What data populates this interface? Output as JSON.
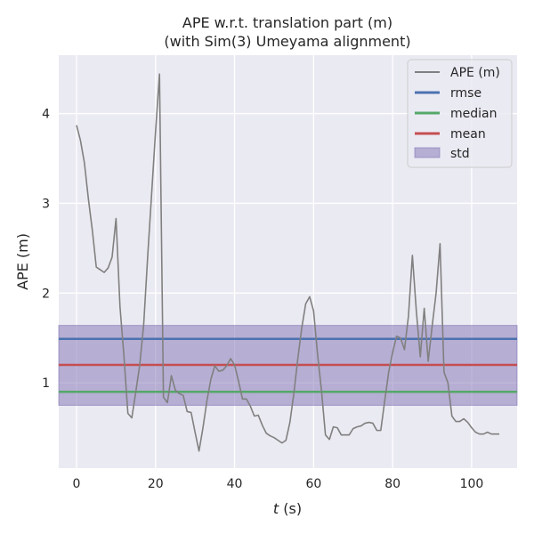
{
  "chart_data": {
    "type": "line",
    "title_line1": "APE w.r.t. translation part (m)",
    "title_line2": "(with Sim(3) Umeyama alignment)",
    "xlabel_var": "t",
    "xlabel_unit": " (s)",
    "ylabel": "APE (m)",
    "xlim": [
      -4.5,
      111.5
    ],
    "ylim": [
      0.05,
      4.65
    ],
    "xticks": [
      0,
      20,
      40,
      60,
      80,
      100
    ],
    "yticks": [
      1,
      2,
      3,
      4
    ],
    "grid": true,
    "legend_position": "top-right",
    "colors": {
      "ape": "#808080",
      "rmse": "#4c72b0",
      "median": "#55a868",
      "mean": "#c44e52",
      "std": "#8172b3",
      "background": "#eaeaf2"
    },
    "legend": [
      "APE (m)",
      "rmse",
      "median",
      "mean",
      "std"
    ],
    "stats": {
      "rmse": 1.49,
      "median": 0.9,
      "mean": 1.2,
      "std_low": 0.75,
      "std_high": 1.64
    },
    "series": [
      {
        "name": "APE (m)",
        "x": [
          0,
          1,
          2,
          3,
          4,
          5,
          6,
          7,
          8,
          9,
          10,
          11,
          12,
          13,
          14,
          15,
          16,
          17,
          18,
          19,
          20,
          21,
          22,
          23,
          24,
          25,
          26,
          27,
          28,
          29,
          30,
          31,
          32,
          33,
          34,
          35,
          36,
          37,
          38,
          39,
          40,
          41,
          42,
          43,
          44,
          45,
          46,
          47,
          48,
          49,
          50,
          51,
          52,
          53,
          54,
          55,
          56,
          57,
          58,
          59,
          60,
          61,
          62,
          63,
          64,
          65,
          66,
          67,
          68,
          69,
          70,
          71,
          72,
          73,
          74,
          75,
          76,
          77,
          78,
          79,
          80,
          81,
          82,
          83,
          84,
          85,
          86,
          87,
          88,
          89,
          90,
          91,
          92,
          93,
          94,
          95,
          96,
          97,
          98,
          99,
          100,
          101,
          102,
          103,
          104,
          105,
          106,
          107
        ],
        "y": [
          3.87,
          3.7,
          3.45,
          3.05,
          2.7,
          2.29,
          2.26,
          2.23,
          2.28,
          2.4,
          2.83,
          1.85,
          1.3,
          0.66,
          0.61,
          0.9,
          1.2,
          1.65,
          2.4,
          3.1,
          3.8,
          4.44,
          0.84,
          0.78,
          1.08,
          0.92,
          0.88,
          0.86,
          0.68,
          0.67,
          0.45,
          0.24,
          0.5,
          0.8,
          1.04,
          1.19,
          1.13,
          1.14,
          1.19,
          1.27,
          1.2,
          1.02,
          0.82,
          0.82,
          0.74,
          0.63,
          0.64,
          0.53,
          0.44,
          0.41,
          0.39,
          0.36,
          0.33,
          0.36,
          0.56,
          0.88,
          1.27,
          1.61,
          1.88,
          1.96,
          1.8,
          1.32,
          0.91,
          0.42,
          0.37,
          0.51,
          0.5,
          0.42,
          0.42,
          0.42,
          0.49,
          0.51,
          0.52,
          0.55,
          0.56,
          0.55,
          0.47,
          0.47,
          0.8,
          1.12,
          1.34,
          1.52,
          1.5,
          1.37,
          1.74,
          2.42,
          1.8,
          1.29,
          1.83,
          1.24,
          1.63,
          2.0,
          2.55,
          1.12,
          1.0,
          0.63,
          0.57,
          0.57,
          0.6,
          0.56,
          0.5,
          0.45,
          0.43,
          0.43,
          0.45,
          0.43,
          0.43,
          0.43
        ]
      }
    ]
  }
}
